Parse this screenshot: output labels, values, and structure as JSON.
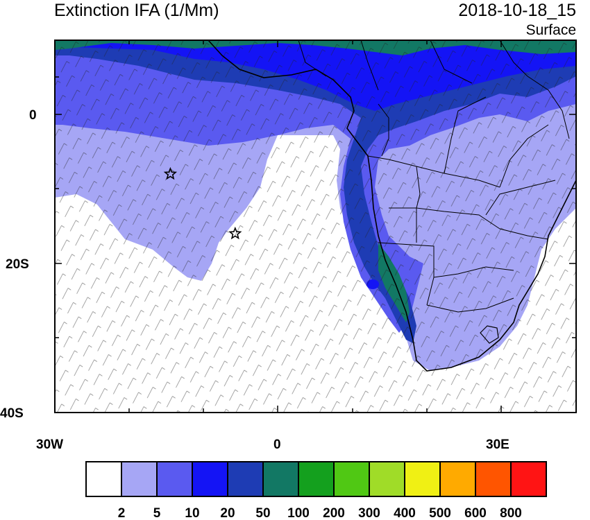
{
  "title": "Extinction IFA (1/Mm)",
  "datetime": "2018-10-18_15",
  "level": "Surface",
  "axes": {
    "lat_labels": [
      "0",
      "20S",
      "40S"
    ],
    "lon_labels": [
      "30W",
      "0",
      "30E"
    ]
  },
  "colorbar": {
    "labels": [
      "2",
      "5",
      "10",
      "20",
      "50",
      "100",
      "200",
      "300",
      "400",
      "500",
      "600",
      "800"
    ],
    "colors": [
      "#ffffff",
      "#a6a6f5",
      "#5a5af0",
      "#1414f5",
      "#1e3cb4",
      "#127864",
      "#14a01e",
      "#50c814",
      "#a0dc28",
      "#f0f014",
      "#ffaa00",
      "#ff5500",
      "#ff1414"
    ]
  },
  "markers": [
    {
      "name": "star-marker",
      "lon": -14.4,
      "lat": -8.0
    },
    {
      "name": "star-marker",
      "lon": -5.7,
      "lat": -16.0
    }
  ]
}
